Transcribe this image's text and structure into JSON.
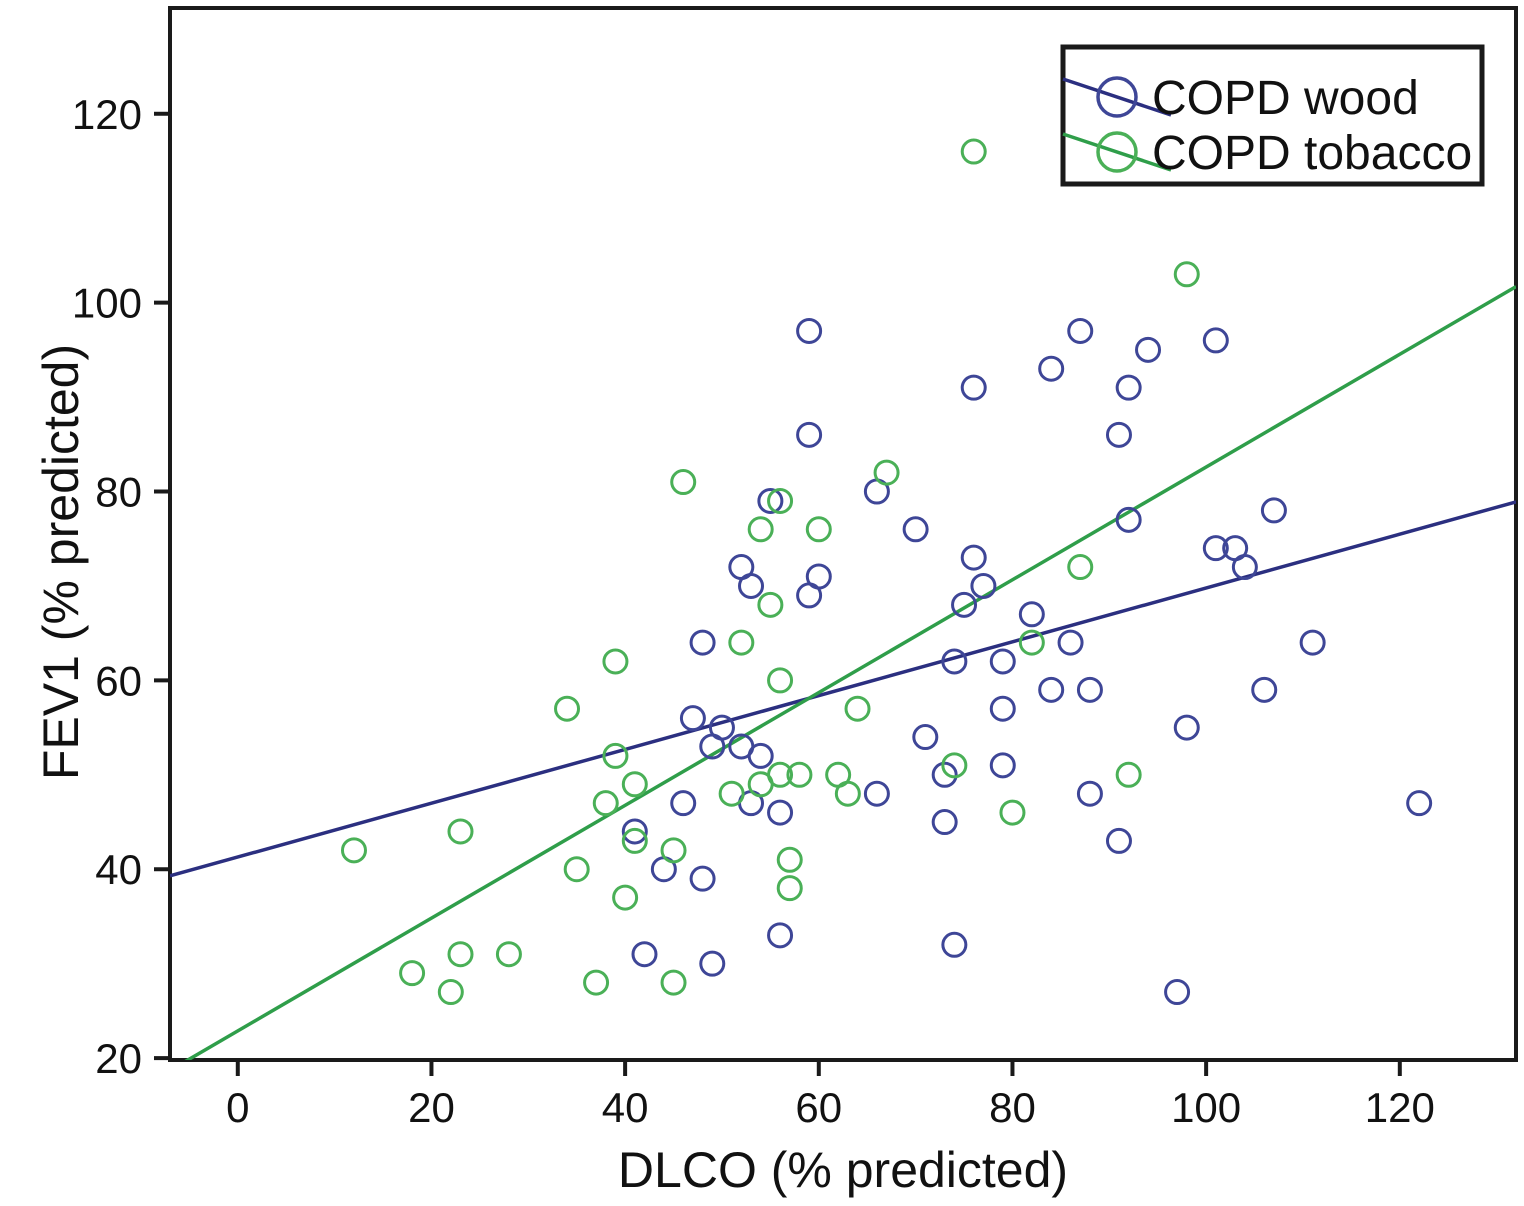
{
  "figure": {
    "background": "#ffffff",
    "frame_color": "#1a1a1a",
    "text_color": "#111111"
  },
  "legend": {
    "items": [
      {
        "label": "COPD wood",
        "symbol": "circle-with-line-icon"
      },
      {
        "label": "COPD tobacco",
        "symbol": "circle-with-line-icon"
      }
    ]
  },
  "chart_data": {
    "type": "scatter",
    "title": "",
    "xlabel": "DLCO (% predicted)",
    "ylabel": "FEV1 (% predicted)",
    "xlim": [
      -7,
      132
    ],
    "ylim": [
      19.8,
      131.2
    ],
    "x_ticks": [
      0,
      20,
      40,
      60,
      80,
      100,
      120
    ],
    "y_ticks": [
      20,
      40,
      60,
      80,
      100,
      120
    ],
    "grid": false,
    "legend_position": "top-right",
    "series": [
      {
        "name": "COPD wood",
        "color": "#3e4697",
        "line_color": "#2b2f80",
        "marker": "circle",
        "trend_line": {
          "from": [
            -7,
            39.3
          ],
          "to": [
            132,
            78.9
          ]
        },
        "points": [
          [
            59,
            97
          ],
          [
            87,
            97
          ],
          [
            101,
            96
          ],
          [
            94,
            95
          ],
          [
            84,
            93
          ],
          [
            76,
            91
          ],
          [
            92,
            91
          ],
          [
            59,
            86
          ],
          [
            91,
            86
          ],
          [
            66,
            80
          ],
          [
            55,
            79
          ],
          [
            92,
            77
          ],
          [
            70,
            76
          ],
          [
            107,
            78
          ],
          [
            101,
            74
          ],
          [
            103,
            74
          ],
          [
            104,
            72
          ],
          [
            76,
            73
          ],
          [
            52,
            72
          ],
          [
            77,
            70
          ],
          [
            53,
            70
          ],
          [
            60,
            71
          ],
          [
            59,
            69
          ],
          [
            75,
            68
          ],
          [
            82,
            67
          ],
          [
            48,
            64
          ],
          [
            86,
            64
          ],
          [
            111,
            64
          ],
          [
            74,
            62
          ],
          [
            79,
            62
          ],
          [
            84,
            59
          ],
          [
            88,
            59
          ],
          [
            106,
            59
          ],
          [
            98,
            55
          ],
          [
            79,
            57
          ],
          [
            71,
            54
          ],
          [
            47,
            56
          ],
          [
            50,
            55
          ],
          [
            49,
            53
          ],
          [
            52,
            53
          ],
          [
            54,
            52
          ],
          [
            79,
            51
          ],
          [
            73,
            50
          ],
          [
            88,
            48
          ],
          [
            66,
            48
          ],
          [
            46,
            47
          ],
          [
            53,
            47
          ],
          [
            56,
            46
          ],
          [
            73,
            45
          ],
          [
            91,
            43
          ],
          [
            41,
            44
          ],
          [
            44,
            40
          ],
          [
            48,
            39
          ],
          [
            56,
            33
          ],
          [
            42,
            31
          ],
          [
            49,
            30
          ],
          [
            74,
            32
          ],
          [
            97,
            27
          ],
          [
            122,
            47
          ]
        ]
      },
      {
        "name": "COPD tobacco",
        "color": "#4ab057",
        "line_color": "#2f9e4a",
        "marker": "circle",
        "trend_line": {
          "from": [
            -7,
            18.7
          ],
          "to": [
            132,
            101.7
          ]
        },
        "points": [
          [
            76,
            116
          ],
          [
            98,
            103
          ],
          [
            67,
            82
          ],
          [
            46,
            81
          ],
          [
            56,
            79
          ],
          [
            54,
            76
          ],
          [
            60,
            76
          ],
          [
            87,
            72
          ],
          [
            55,
            68
          ],
          [
            52,
            64
          ],
          [
            82,
            64
          ],
          [
            39,
            62
          ],
          [
            56,
            60
          ],
          [
            34,
            57
          ],
          [
            64,
            57
          ],
          [
            39,
            52
          ],
          [
            74,
            51
          ],
          [
            92,
            50
          ],
          [
            62,
            50
          ],
          [
            56,
            50
          ],
          [
            58,
            50
          ],
          [
            54,
            49
          ],
          [
            41,
            49
          ],
          [
            63,
            48
          ],
          [
            51,
            48
          ],
          [
            38,
            47
          ],
          [
            80,
            46
          ],
          [
            23,
            44
          ],
          [
            41,
            43
          ],
          [
            45,
            42
          ],
          [
            12,
            42
          ],
          [
            57,
            41
          ],
          [
            35,
            40
          ],
          [
            40,
            37
          ],
          [
            57,
            38
          ],
          [
            23,
            31
          ],
          [
            28,
            31
          ],
          [
            18,
            29
          ],
          [
            22,
            27
          ],
          [
            37,
            28
          ],
          [
            45,
            28
          ]
        ]
      }
    ]
  }
}
